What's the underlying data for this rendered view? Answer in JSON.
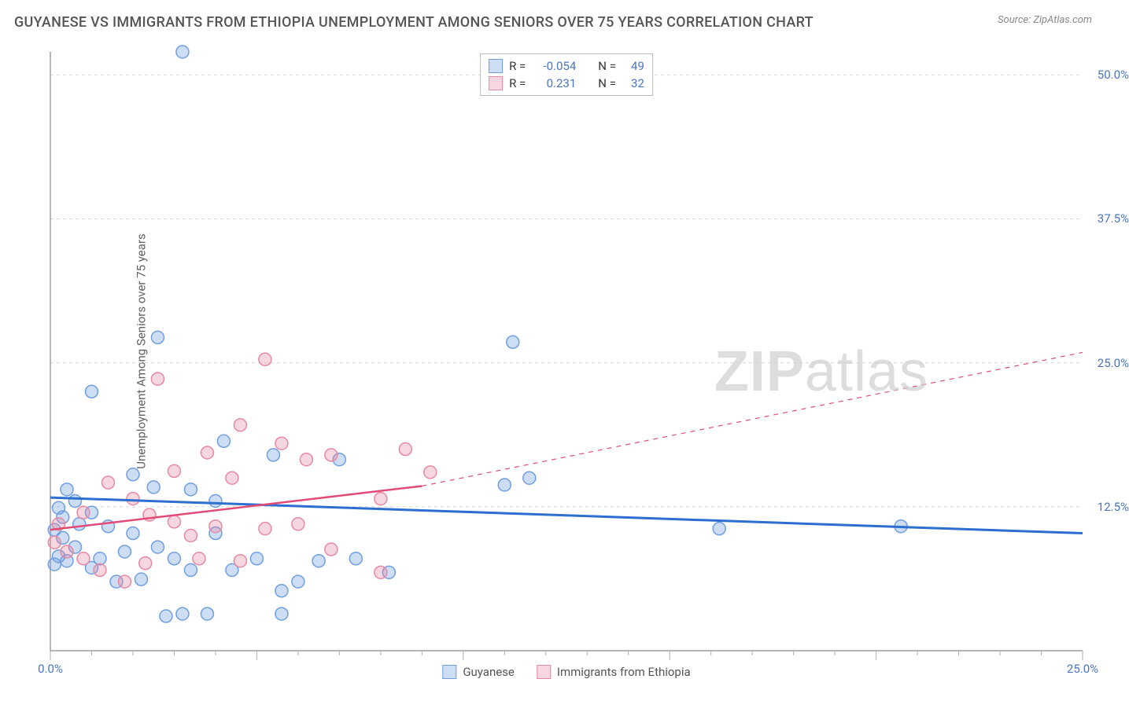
{
  "header": {
    "title": "GUYANESE VS IMMIGRANTS FROM ETHIOPIA UNEMPLOYMENT AMONG SENIORS OVER 75 YEARS CORRELATION CHART",
    "source": "Source: ZipAtlas.com"
  },
  "watermark": {
    "bold": "ZIP",
    "light": "atlas"
  },
  "yaxis": {
    "label": "Unemployment Among Seniors over 75 years"
  },
  "chart": {
    "type": "scatter",
    "xlim": [
      0,
      25
    ],
    "ylim": [
      0,
      52
    ],
    "background_color": "#ffffff",
    "grid_color": "#d8d8d8",
    "axis_color": "#9e9e9e",
    "tick_color": "#b0b0b0",
    "label_color": "#4a75c4",
    "yticks": [
      {
        "v": 12.5,
        "label": "12.5%"
      },
      {
        "v": 25.0,
        "label": "25.0%"
      },
      {
        "v": 37.5,
        "label": "37.5%"
      },
      {
        "v": 50.0,
        "label": "50.0%"
      }
    ],
    "xticks_major": [
      0,
      5,
      10,
      15,
      20,
      25
    ],
    "xticks_minor_step": 1,
    "xtick_labels": [
      {
        "v": 0,
        "label": "0.0%"
      },
      {
        "v": 25,
        "label": "25.0%"
      }
    ],
    "series": [
      {
        "name": "Guyanese",
        "marker_color": "#6f9fe0",
        "marker_fill": "rgba(111,159,224,0.35)",
        "marker_radius": 8,
        "reg_color": "#2d6fd1",
        "reg_width": 3,
        "R": "-0.054",
        "N": "49",
        "reg_solid": {
          "x1": 0,
          "y1": 13.3,
          "x2": 25,
          "y2": 10.2
        },
        "points": [
          [
            3.2,
            52.0
          ],
          [
            2.6,
            27.2
          ],
          [
            11.2,
            26.8
          ],
          [
            1.0,
            22.5
          ],
          [
            0.4,
            14.0
          ],
          [
            4.2,
            18.2
          ],
          [
            5.4,
            17.0
          ],
          [
            7.0,
            16.6
          ],
          [
            1.0,
            12.0
          ],
          [
            2.0,
            15.3
          ],
          [
            2.5,
            14.2
          ],
          [
            3.4,
            14.0
          ],
          [
            4.0,
            13.0
          ],
          [
            0.2,
            12.4
          ],
          [
            0.7,
            11.0
          ],
          [
            1.4,
            10.8
          ],
          [
            2.0,
            10.2
          ],
          [
            2.6,
            9.0
          ],
          [
            3.0,
            8.0
          ],
          [
            3.4,
            7.0
          ],
          [
            4.4,
            7.0
          ],
          [
            5.0,
            8.0
          ],
          [
            5.6,
            5.2
          ],
          [
            6.0,
            6.0
          ],
          [
            6.5,
            7.8
          ],
          [
            7.4,
            8.0
          ],
          [
            8.2,
            6.8
          ],
          [
            4.0,
            10.2
          ],
          [
            0.4,
            7.8
          ],
          [
            1.0,
            7.2
          ],
          [
            1.6,
            6.0
          ],
          [
            2.2,
            6.2
          ],
          [
            2.8,
            3.0
          ],
          [
            3.2,
            3.2
          ],
          [
            3.8,
            3.2
          ],
          [
            5.6,
            3.2
          ],
          [
            0.3,
            9.8
          ],
          [
            0.6,
            9.0
          ],
          [
            1.2,
            8.0
          ],
          [
            1.8,
            8.6
          ],
          [
            0.2,
            8.2
          ],
          [
            0.1,
            7.5
          ],
          [
            0.1,
            10.5
          ],
          [
            0.3,
            11.6
          ],
          [
            0.6,
            13.0
          ],
          [
            11.0,
            14.4
          ],
          [
            11.6,
            15.0
          ],
          [
            16.2,
            10.6
          ],
          [
            20.6,
            10.8
          ]
        ]
      },
      {
        "name": "Immigrants from Ethiopia",
        "marker_color": "#e68aa3",
        "marker_fill": "rgba(230,138,163,0.35)",
        "marker_radius": 8,
        "reg_color": "#e34b77",
        "reg_width": 2.5,
        "R": "0.231",
        "N": "32",
        "reg_solid": {
          "x1": 0,
          "y1": 10.5,
          "x2": 9.0,
          "y2": 14.3
        },
        "reg_dashed": {
          "x1": 9.0,
          "y1": 14.3,
          "x2": 25,
          "y2": 25.9
        },
        "points": [
          [
            2.6,
            23.6
          ],
          [
            5.2,
            25.3
          ],
          [
            4.6,
            19.6
          ],
          [
            5.6,
            18.0
          ],
          [
            6.2,
            16.6
          ],
          [
            6.8,
            17.0
          ],
          [
            8.6,
            17.5
          ],
          [
            9.2,
            15.5
          ],
          [
            3.0,
            15.6
          ],
          [
            3.8,
            17.2
          ],
          [
            4.4,
            15.0
          ],
          [
            0.2,
            11.0
          ],
          [
            0.8,
            12.0
          ],
          [
            1.4,
            14.6
          ],
          [
            2.0,
            13.2
          ],
          [
            2.4,
            11.8
          ],
          [
            3.0,
            11.2
          ],
          [
            3.4,
            10.0
          ],
          [
            4.0,
            10.8
          ],
          [
            5.2,
            10.6
          ],
          [
            6.0,
            11.0
          ],
          [
            8.0,
            13.2
          ],
          [
            0.1,
            9.4
          ],
          [
            0.4,
            8.6
          ],
          [
            0.8,
            8.0
          ],
          [
            1.2,
            7.0
          ],
          [
            1.8,
            6.0
          ],
          [
            2.3,
            7.6
          ],
          [
            3.6,
            8.0
          ],
          [
            4.6,
            7.8
          ],
          [
            6.8,
            8.8
          ],
          [
            8.0,
            6.8
          ]
        ]
      }
    ]
  },
  "legend_top": {
    "r_label": "R =",
    "n_label": "N ="
  },
  "legend_bottom": [
    {
      "label": "Guyanese",
      "fill": "rgba(111,159,224,0.35)",
      "border": "#6f9fe0"
    },
    {
      "label": "Immigrants from Ethiopia",
      "fill": "rgba(230,138,163,0.35)",
      "border": "#e68aa3"
    }
  ]
}
